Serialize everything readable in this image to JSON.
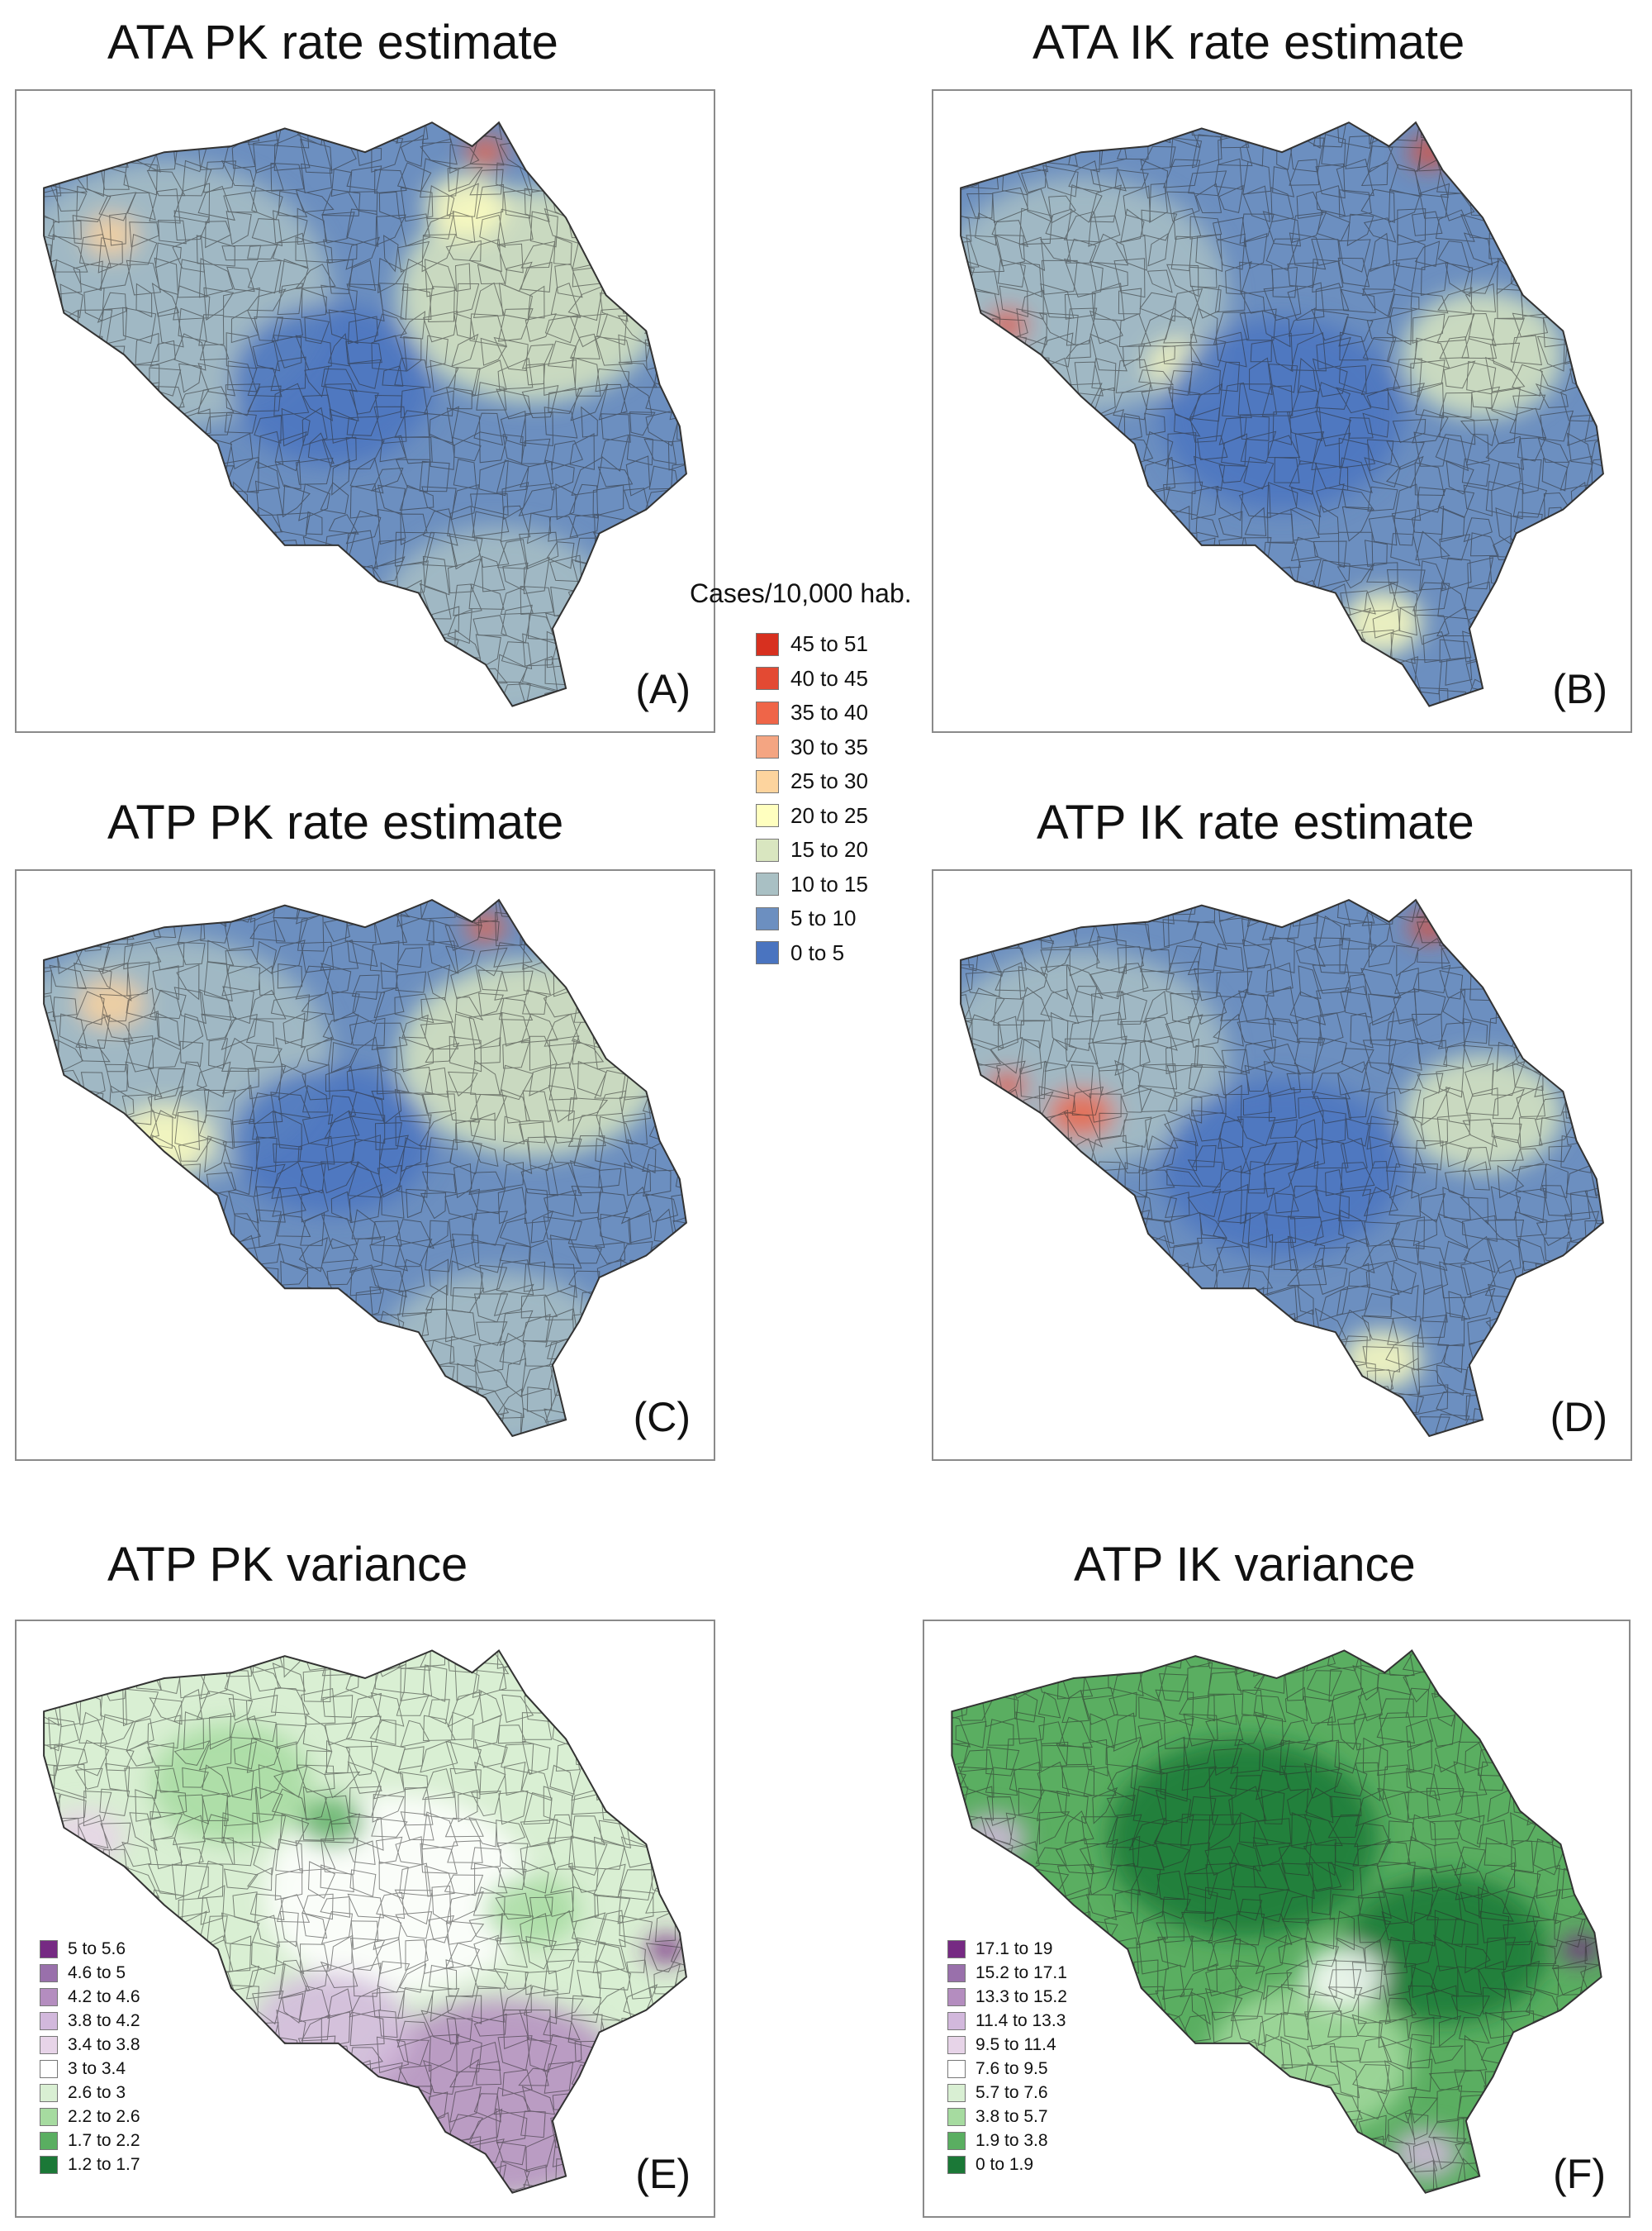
{
  "panels": {
    "a": {
      "title": "ATA PK rate estimate",
      "label": "(A)"
    },
    "b": {
      "title": "ATA IK rate estimate",
      "label": "(B)"
    },
    "c": {
      "title": "ATP PK rate estimate",
      "label": "(C)"
    },
    "d": {
      "title": "ATP IK rate estimate",
      "label": "(D)"
    },
    "e": {
      "title": "ATP PK variance",
      "label": "(E)"
    },
    "f": {
      "title": "ATP IK variance",
      "label": "(F)"
    }
  },
  "rate_legend": {
    "title": "Cases/10,000 hab.",
    "classes": [
      {
        "label": "45 to 51",
        "color": "#d7301f"
      },
      {
        "label": "40 to 45",
        "color": "#e34a33"
      },
      {
        "label": "35 to 40",
        "color": "#ef6548"
      },
      {
        "label": "30 to 35",
        "color": "#f4a582"
      },
      {
        "label": "25 to 30",
        "color": "#fdd49e"
      },
      {
        "label": "20 to 25",
        "color": "#ffffbf"
      },
      {
        "label": "15 to 20",
        "color": "#d9e6c0"
      },
      {
        "label": "10 to 15",
        "color": "#a9c0c4"
      },
      {
        "label": "5 to 10",
        "color": "#6c8fc0"
      },
      {
        "label": "0 to 5",
        "color": "#4a74c0"
      }
    ]
  },
  "pk_variance_legend": {
    "classes": [
      {
        "label": "5 to 5.6",
        "color": "#762a83"
      },
      {
        "label": "4.6 to 5",
        "color": "#9970ab"
      },
      {
        "label": "4.2 to 4.6",
        "color": "#b48dbf"
      },
      {
        "label": "3.8 to 4.2",
        "color": "#d2b8dc"
      },
      {
        "label": "3.4 to 3.8",
        "color": "#e7d4e8"
      },
      {
        "label": "3 to 3.4",
        "color": "#ffffff"
      },
      {
        "label": "2.6 to 3",
        "color": "#d9efd3"
      },
      {
        "label": "2.2 to 2.6",
        "color": "#a6dba0"
      },
      {
        "label": "1.7 to 2.2",
        "color": "#5aae61"
      },
      {
        "label": "1.2 to 1.7",
        "color": "#1b7837"
      }
    ]
  },
  "ik_variance_legend": {
    "classes": [
      {
        "label": "17.1 to 19",
        "color": "#762a83"
      },
      {
        "label": "15.2 to 17.1",
        "color": "#9970ab"
      },
      {
        "label": "13.3 to 15.2",
        "color": "#b48dbf"
      },
      {
        "label": "11.4 to 13.3",
        "color": "#d2b8dc"
      },
      {
        "label": "9.5 to 11.4",
        "color": "#e7d4e8"
      },
      {
        "label": "7.6 to 9.5",
        "color": "#ffffff"
      },
      {
        "label": "5.7 to 7.6",
        "color": "#d9efd3"
      },
      {
        "label": "3.8 to 5.7",
        "color": "#a6dba0"
      },
      {
        "label": "1.9 to 3.8",
        "color": "#5aae61"
      },
      {
        "label": "0 to 1.9",
        "color": "#1b7837"
      }
    ]
  },
  "maps": {
    "a": {
      "base": "#6c8fc0",
      "blobs": [
        [
          "#a9c0c4",
          0.2,
          0.3,
          0.25
        ],
        [
          "#d9e6c0",
          0.75,
          0.3,
          0.2
        ],
        [
          "#ffffbf",
          0.65,
          0.15,
          0.06
        ],
        [
          "#ef6548",
          0.68,
          0.06,
          0.03
        ],
        [
          "#f4a582",
          0.48,
          0.85,
          0.05
        ],
        [
          "#fdd49e",
          0.12,
          0.2,
          0.04
        ],
        [
          "#4a74c0",
          0.45,
          0.45,
          0.15
        ],
        [
          "#a9c0c4",
          0.7,
          0.85,
          0.18
        ]
      ]
    },
    "b": {
      "base": "#6c8fc0",
      "blobs": [
        [
          "#a9c0c4",
          0.2,
          0.3,
          0.22
        ],
        [
          "#ffffbf",
          0.35,
          0.42,
          0.05
        ],
        [
          "#e34a33",
          0.72,
          0.06,
          0.03
        ],
        [
          "#e34a33",
          0.09,
          0.35,
          0.03
        ],
        [
          "#f4a582",
          0.48,
          0.85,
          0.05
        ],
        [
          "#4a74c0",
          0.5,
          0.5,
          0.18
        ],
        [
          "#ffffbf",
          0.65,
          0.85,
          0.06
        ],
        [
          "#d9e6c0",
          0.8,
          0.4,
          0.12
        ]
      ]
    },
    "c": {
      "base": "#6c8fc0",
      "blobs": [
        [
          "#a9c0c4",
          0.2,
          0.3,
          0.25
        ],
        [
          "#d9e6c0",
          0.75,
          0.3,
          0.2
        ],
        [
          "#fdd49e",
          0.12,
          0.2,
          0.05
        ],
        [
          "#ef6548",
          0.68,
          0.06,
          0.03
        ],
        [
          "#f4a582",
          0.48,
          0.85,
          0.05
        ],
        [
          "#4a74c0",
          0.45,
          0.45,
          0.15
        ],
        [
          "#a9c0c4",
          0.7,
          0.85,
          0.18
        ],
        [
          "#ffffbf",
          0.2,
          0.45,
          0.07
        ]
      ]
    },
    "d": {
      "base": "#6c8fc0",
      "blobs": [
        [
          "#a9c0c4",
          0.2,
          0.3,
          0.22
        ],
        [
          "#ef6548",
          0.2,
          0.4,
          0.05
        ],
        [
          "#e34a33",
          0.72,
          0.06,
          0.03
        ],
        [
          "#e34a33",
          0.09,
          0.35,
          0.03
        ],
        [
          "#f4a582",
          0.48,
          0.85,
          0.05
        ],
        [
          "#4a74c0",
          0.5,
          0.5,
          0.18
        ],
        [
          "#ffffbf",
          0.65,
          0.85,
          0.06
        ],
        [
          "#d9e6c0",
          0.8,
          0.4,
          0.12
        ]
      ]
    },
    "e": {
      "base": "#d9efd3",
      "blobs": [
        [
          "#ffffff",
          0.55,
          0.45,
          0.2
        ],
        [
          "#5aae61",
          0.45,
          0.32,
          0.05
        ],
        [
          "#a6dba0",
          0.3,
          0.25,
          0.12
        ],
        [
          "#b48dbf",
          0.7,
          0.82,
          0.2
        ],
        [
          "#d2b8dc",
          0.45,
          0.7,
          0.12
        ],
        [
          "#762a83",
          0.95,
          0.55,
          0.03
        ],
        [
          "#e7d4e8",
          0.08,
          0.35,
          0.06
        ],
        [
          "#a6dba0",
          0.75,
          0.48,
          0.07
        ]
      ]
    },
    "f": {
      "base": "#5aae61",
      "blobs": [
        [
          "#1b7837",
          0.45,
          0.35,
          0.2
        ],
        [
          "#1b7837",
          0.75,
          0.55,
          0.15
        ],
        [
          "#a6dba0",
          0.55,
          0.75,
          0.15
        ],
        [
          "#b48dbf",
          0.45,
          0.82,
          0.05
        ],
        [
          "#762a83",
          0.95,
          0.55,
          0.03
        ],
        [
          "#d2b8dc",
          0.08,
          0.35,
          0.05
        ],
        [
          "#d2b8dc",
          0.72,
          0.92,
          0.05
        ],
        [
          "#ffffff",
          0.6,
          0.6,
          0.06
        ]
      ]
    }
  }
}
